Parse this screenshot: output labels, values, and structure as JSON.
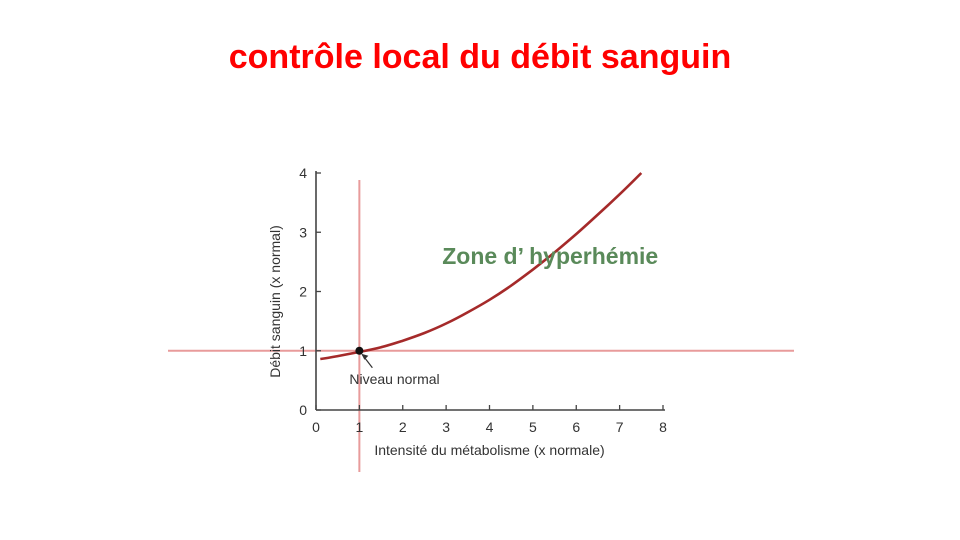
{
  "slide": {
    "title": "contrôle local du débit sanguin"
  },
  "chart_data": {
    "type": "line",
    "xlabel": "Intensité du métabolisme (x normale)",
    "ylabel": "Débit sanguin (x normal)",
    "xlim": [
      0,
      8
    ],
    "ylim": [
      0,
      4
    ],
    "x_ticks": [
      "0",
      "1",
      "2",
      "3",
      "4",
      "5",
      "6",
      "7",
      "8"
    ],
    "y_ticks": [
      "0",
      "1",
      "2",
      "3",
      "4"
    ],
    "grid": false,
    "series": [
      {
        "x": [
          0.1,
          0.5,
          1.0,
          1.5,
          2.0,
          2.5,
          3.0,
          3.5,
          4.0,
          4.5,
          5.0,
          5.5,
          6.0,
          6.5,
          7.0,
          7.5
        ],
        "y": [
          0.86,
          0.91,
          0.98,
          1.06,
          1.17,
          1.3,
          1.46,
          1.65,
          1.86,
          2.1,
          2.37,
          2.66,
          2.97,
          3.3,
          3.64,
          4.0
        ]
      }
    ],
    "reference_lines": {
      "x": 1,
      "y": 1
    },
    "highlight_point": {
      "x": 1,
      "y": 1,
      "label": "Niveau normal"
    },
    "annotations": [
      {
        "text": "Zone d’ hyperhémie",
        "x": 5.4,
        "y": 2.6
      }
    ],
    "colors": {
      "curve": "#a52a2a",
      "reference_lines": "#e89b9b",
      "axis": "#444444",
      "zone_label": "#5a8a5a",
      "title": "#ff0000"
    }
  }
}
